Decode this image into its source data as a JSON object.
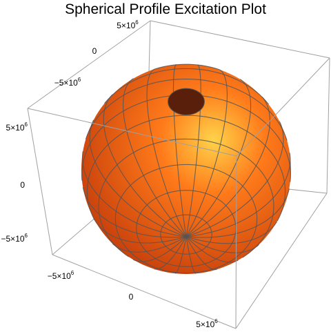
{
  "chart_data": {
    "type": "surface3d",
    "title": "Spherical Profile Excitation Plot",
    "surface": {
      "shape": "sphere",
      "radius": 5000000,
      "center": [
        0,
        0,
        0
      ],
      "color_light": "#ffd34a",
      "color_mid": "#ff7a1a",
      "color_dark": "#c23a0a",
      "mesh_color": "#555555",
      "polar_cap_color": "#5a1f0a"
    },
    "axes": {
      "x": {
        "range": [
          -7000000,
          7000000
        ],
        "ticks": [
          -5000000,
          0,
          5000000
        ],
        "tick_labels": [
          {
            "text": "−5×10",
            "exp": "6"
          },
          {
            "text": "0",
            "exp": ""
          },
          {
            "text": "5×10",
            "exp": "6"
          }
        ]
      },
      "y": {
        "range": [
          -7000000,
          7000000
        ],
        "ticks": [
          -5000000,
          0,
          5000000
        ],
        "tick_labels": [
          {
            "text": "−5×10",
            "exp": "6"
          },
          {
            "text": "0",
            "exp": ""
          },
          {
            "text": "5×10",
            "exp": "6"
          }
        ]
      },
      "z": {
        "range": [
          -7000000,
          7000000
        ],
        "ticks": [
          -5000000,
          0,
          5000000
        ],
        "tick_labels": [
          {
            "text": "−5×10",
            "exp": "6"
          },
          {
            "text": "0",
            "exp": ""
          },
          {
            "text": "5×10",
            "exp": "6"
          }
        ]
      }
    },
    "box": true,
    "box_color": "#a0a0a0",
    "grid": false,
    "legend": "none"
  }
}
